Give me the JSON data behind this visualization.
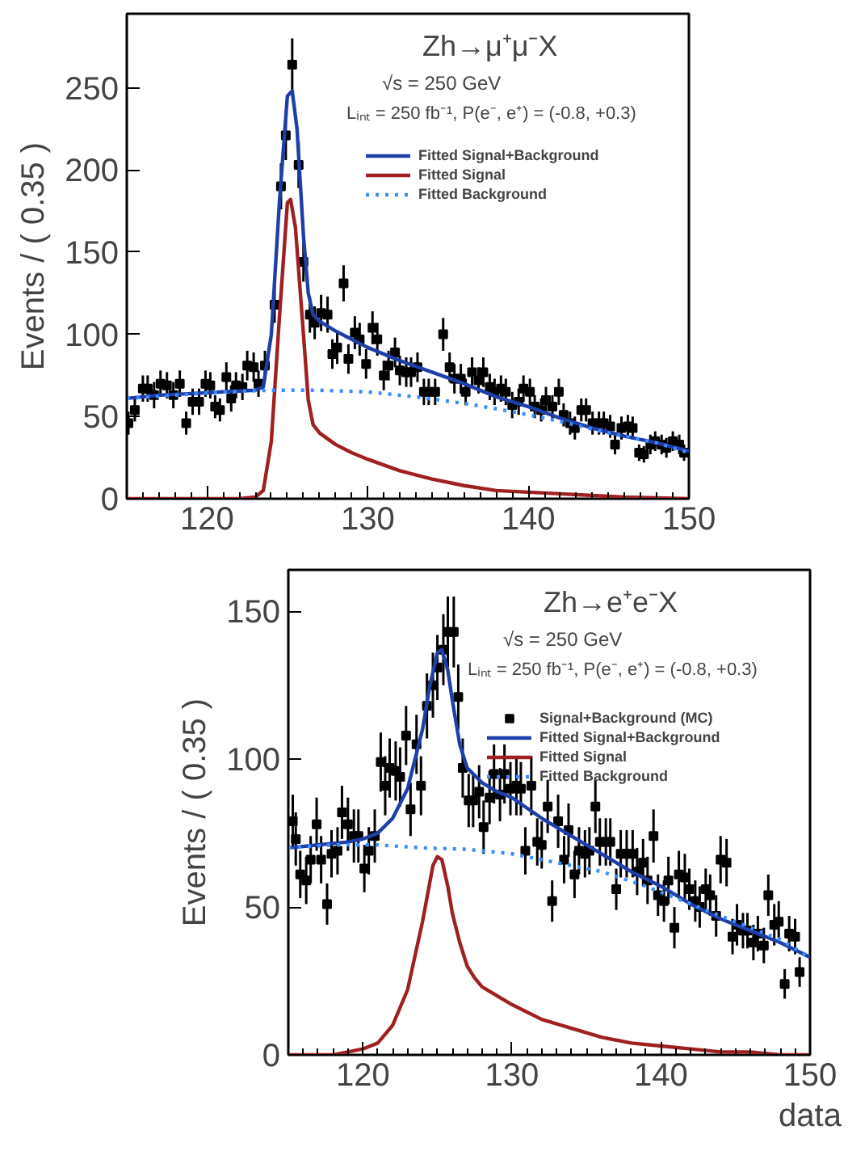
{
  "chart_data": [
    {
      "type": "scatter",
      "ylabel": "Events / ( 0.35 )",
      "annotations": [
        "Zh→μ⁺μ⁻X",
        "√s = 250 GeV",
        "Lᵢₙₜ = 250 fb⁻¹, P(e⁻, e⁺) = (-0.8, +0.3)"
      ],
      "xlim": [
        115,
        150
      ],
      "ylim": [
        0,
        295
      ],
      "xticks": [
        120,
        130,
        140,
        150
      ],
      "yticks": [
        0,
        50,
        100,
        150,
        200,
        250
      ],
      "grid": false,
      "legend": "top right",
      "series": [
        {
          "marker": "square",
          "color": "#000000",
          "x": [
            115.1,
            115.5,
            116.0,
            116.3,
            116.7,
            117.1,
            117.5,
            117.9,
            118.3,
            118.7,
            119.1,
            119.5,
            119.9,
            120.2,
            120.5,
            120.8,
            121.2,
            121.5,
            121.8,
            122.2,
            122.5,
            122.9,
            123.2,
            123.6,
            124.2,
            124.6,
            124.9,
            125.3,
            125.7,
            126.0,
            126.4,
            126.7,
            127.1,
            127.5,
            127.8,
            128.1,
            128.5,
            128.8,
            129.2,
            129.5,
            129.9,
            130.3,
            130.6,
            131.0,
            131.3,
            131.7,
            132.0,
            132.4,
            132.7,
            133.1,
            133.5,
            133.8,
            134.2,
            134.7,
            135.1,
            135.4,
            135.8,
            136.1,
            136.5,
            136.9,
            137.2,
            137.6,
            137.9,
            138.3,
            138.6,
            139.0,
            139.4,
            139.7,
            140.1,
            140.4,
            140.8,
            141.1,
            141.5,
            141.9,
            142.2,
            142.6,
            142.9,
            143.3,
            143.6,
            144.0,
            144.4,
            144.7,
            145.1,
            145.4,
            145.8,
            146.2,
            146.5,
            146.9,
            147.2,
            147.6,
            147.9,
            148.3,
            148.6,
            149.0,
            149.4,
            149.7
          ],
          "values": [
            46,
            54,
            67,
            67,
            63,
            70,
            69,
            63,
            70,
            46,
            59,
            59,
            70,
            69,
            56,
            54,
            74,
            61,
            69,
            68,
            81,
            80,
            70,
            81,
            118,
            190,
            221,
            264,
            203,
            144,
            112,
            107,
            113,
            112,
            88,
            92,
            131,
            85,
            101,
            97,
            82,
            104,
            97,
            75,
            81,
            89,
            78,
            77,
            77,
            80,
            65,
            65,
            65,
            100,
            80,
            73,
            73,
            65,
            77,
            72,
            77,
            68,
            65,
            67,
            65,
            57,
            59,
            67,
            65,
            56,
            54,
            60,
            56,
            65,
            51,
            46,
            43,
            54,
            54,
            46,
            46,
            46,
            44,
            33,
            43,
            44,
            43,
            28,
            27,
            33,
            35,
            33,
            31,
            35,
            33,
            28
          ],
          "errors": [
            7,
            7,
            8,
            8,
            8,
            8,
            8,
            8,
            8,
            7,
            8,
            8,
            8,
            8,
            7,
            7,
            9,
            8,
            8,
            8,
            9,
            9,
            8,
            9,
            11,
            14,
            15,
            16,
            14,
            12,
            11,
            10,
            11,
            11,
            9,
            10,
            11,
            9,
            10,
            10,
            9,
            10,
            10,
            9,
            9,
            9,
            9,
            9,
            9,
            9,
            8,
            8,
            8,
            10,
            9,
            9,
            9,
            8,
            9,
            8,
            9,
            8,
            8,
            8,
            8,
            8,
            8,
            8,
            8,
            7,
            7,
            8,
            7,
            8,
            7,
            7,
            7,
            7,
            7,
            7,
            7,
            7,
            7,
            6,
            7,
            7,
            7,
            5,
            5,
            6,
            6,
            6,
            6,
            6,
            6,
            5
          ]
        },
        {
          "type": "line",
          "name": "Fitted Signal+Background",
          "color": "#1f3fa8",
          "line_style": "solid",
          "x": [
            115,
            117,
            119,
            121,
            123,
            123.5,
            124,
            124.5,
            125,
            125.3,
            125.6,
            126,
            126.3,
            126.6,
            127,
            128,
            129,
            130,
            132,
            134,
            136,
            138,
            140,
            142,
            144,
            146,
            148,
            150
          ],
          "values": [
            61,
            63,
            64,
            65,
            66,
            68,
            100,
            180,
            245,
            248,
            225,
            160,
            125,
            112,
            108,
            102,
            97,
            92,
            84,
            77,
            70,
            62,
            56,
            49,
            43,
            38,
            34,
            29
          ]
        },
        {
          "type": "line",
          "name": "Fitted Signal",
          "color": "#a02020",
          "line_style": "solid",
          "x": [
            115,
            122,
            123,
            123.5,
            124,
            124.5,
            125,
            125.2,
            125.5,
            126,
            126.3,
            126.6,
            127,
            128,
            129,
            130,
            132,
            134,
            136,
            138,
            140,
            142,
            144,
            146,
            150
          ],
          "values": [
            0,
            0,
            1,
            5,
            35,
            110,
            180,
            182,
            165,
            100,
            60,
            45,
            40,
            33,
            28,
            24,
            17,
            12,
            8,
            5,
            4,
            3,
            2,
            1,
            0
          ]
        },
        {
          "type": "line",
          "name": "Fitted Background",
          "color": "#3b8cff",
          "line_style": "dotted",
          "x": [
            115,
            118,
            121,
            124,
            127,
            130,
            133,
            136,
            139,
            142,
            145,
            148,
            150
          ],
          "values": [
            61,
            63,
            65,
            66,
            66,
            65,
            62,
            58,
            53,
            47,
            40,
            34,
            28
          ]
        }
      ]
    },
    {
      "type": "scatter",
      "xlabel": "data",
      "ylabel": "Events / ( 0.35 )",
      "annotations": [
        "Zh→e⁺e⁻X",
        "√s = 250 GeV",
        "Lᵢₙₜ = 250 fb⁻¹, P(e⁻, e⁺) = (-0.8, +0.3)"
      ],
      "xlim": [
        115,
        150
      ],
      "ylim": [
        0,
        164
      ],
      "xticks": [
        120,
        130,
        140,
        150
      ],
      "yticks": [
        0,
        50,
        100,
        150
      ],
      "grid": false,
      "legend": "top right",
      "series": [
        {
          "name": "Signal+Background (MC)",
          "marker": "square",
          "color": "#000000",
          "x": [
            115.3,
            115.5,
            115.8,
            116.2,
            116.5,
            116.9,
            117.2,
            117.6,
            117.9,
            118.3,
            118.6,
            119.0,
            119.4,
            119.7,
            120.1,
            120.4,
            120.8,
            121.2,
            121.5,
            121.8,
            122.2,
            122.5,
            122.9,
            123.2,
            123.6,
            123.9,
            124.3,
            124.7,
            125.0,
            125.4,
            125.7,
            126.1,
            126.4,
            126.7,
            127.1,
            127.4,
            127.8,
            128.1,
            128.5,
            128.8,
            129.2,
            129.5,
            129.9,
            130.3,
            130.6,
            130.9,
            131.3,
            131.7,
            132.0,
            132.4,
            132.7,
            133.1,
            133.5,
            133.8,
            134.2,
            134.5,
            134.9,
            135.2,
            135.6,
            135.9,
            136.3,
            136.6,
            137.0,
            137.3,
            137.7,
            138.1,
            138.4,
            138.8,
            139.1,
            139.5,
            139.8,
            140.2,
            140.5,
            140.9,
            141.2,
            141.6,
            141.9,
            142.3,
            142.6,
            143.0,
            143.3,
            143.7,
            144.0,
            144.4,
            144.8,
            145.1,
            145.5,
            145.8,
            146.2,
            146.5,
            146.9,
            147.2,
            147.6,
            147.9,
            148.3,
            148.6,
            149.0,
            149.3
          ],
          "values": [
            79,
            73,
            61,
            59,
            66,
            78,
            66,
            51,
            68,
            69,
            82,
            78,
            74,
            74,
            63,
            69,
            74,
            99,
            91,
            97,
            96,
            94,
            108,
            83,
            105,
            91,
            118,
            125,
            131,
            137,
            143,
            143,
            121,
            97,
            86,
            86,
            89,
            77,
            87,
            95,
            88,
            95,
            90,
            91,
            90,
            69,
            91,
            72,
            71,
            84,
            52,
            79,
            66,
            76,
            61,
            69,
            68,
            69,
            84,
            72,
            72,
            72,
            56,
            68,
            68,
            68,
            62,
            65,
            59,
            74,
            54,
            52,
            59,
            43,
            61,
            60,
            56,
            52,
            50,
            56,
            54,
            47,
            66,
            65,
            40,
            44,
            42,
            42,
            38,
            41,
            37,
            54,
            44,
            45,
            24,
            41,
            40,
            28
          ],
          "errors": [
            9,
            9,
            8,
            8,
            8,
            9,
            8,
            7,
            8,
            8,
            9,
            9,
            9,
            9,
            8,
            8,
            9,
            10,
            10,
            10,
            10,
            10,
            10,
            9,
            10,
            10,
            11,
            11,
            11,
            12,
            12,
            12,
            11,
            10,
            9,
            9,
            9,
            9,
            9,
            10,
            9,
            10,
            9,
            10,
            9,
            8,
            10,
            8,
            8,
            9,
            7,
            9,
            8,
            9,
            8,
            8,
            8,
            8,
            9,
            8,
            8,
            8,
            7,
            8,
            8,
            8,
            8,
            8,
            8,
            9,
            7,
            7,
            8,
            7,
            8,
            8,
            7,
            7,
            7,
            7,
            7,
            7,
            8,
            8,
            6,
            7,
            6,
            6,
            6,
            6,
            6,
            7,
            7,
            7,
            5,
            6,
            6,
            5
          ]
        },
        {
          "type": "line",
          "name": "Fitted Signal+Background",
          "color": "#1f3fa8",
          "line_style": "solid",
          "x": [
            115,
            117,
            119,
            120,
            121,
            122,
            123,
            124,
            124.5,
            125,
            125.3,
            125.7,
            126,
            126.5,
            127,
            128,
            129,
            130,
            132,
            134,
            136,
            138,
            140,
            142,
            144,
            146,
            148,
            150
          ],
          "values": [
            70,
            71,
            72,
            73,
            75,
            80,
            90,
            110,
            125,
            136,
            137,
            130,
            120,
            105,
            97,
            92,
            89,
            87,
            80,
            74,
            68,
            62,
            57,
            51,
            46,
            42,
            38,
            33
          ]
        },
        {
          "type": "line",
          "name": "Fitted Signal",
          "color": "#a02020",
          "line_style": "solid",
          "x": [
            115,
            118,
            119,
            120,
            121,
            122,
            123,
            124,
            124.7,
            125,
            125.3,
            125.7,
            126,
            126.5,
            127,
            127.5,
            128,
            129,
            130,
            132,
            134,
            136,
            138,
            140,
            142,
            144,
            146,
            148,
            150
          ],
          "values": [
            0,
            0,
            1,
            2,
            4,
            10,
            22,
            45,
            64,
            67,
            66,
            57,
            48,
            38,
            30,
            26,
            23,
            20,
            17,
            12,
            9,
            6,
            4,
            3,
            2,
            1,
            1,
            0,
            0
          ]
        },
        {
          "type": "line",
          "name": "Fitted Background",
          "color": "#3b8cff",
          "line_style": "dotted",
          "x": [
            115,
            118,
            121,
            124,
            127,
            130,
            133,
            136,
            139,
            142,
            145,
            148,
            150
          ],
          "values": [
            70,
            71,
            71,
            70,
            69.5,
            68,
            65,
            62,
            57,
            51,
            45,
            39,
            33
          ]
        }
      ]
    }
  ]
}
